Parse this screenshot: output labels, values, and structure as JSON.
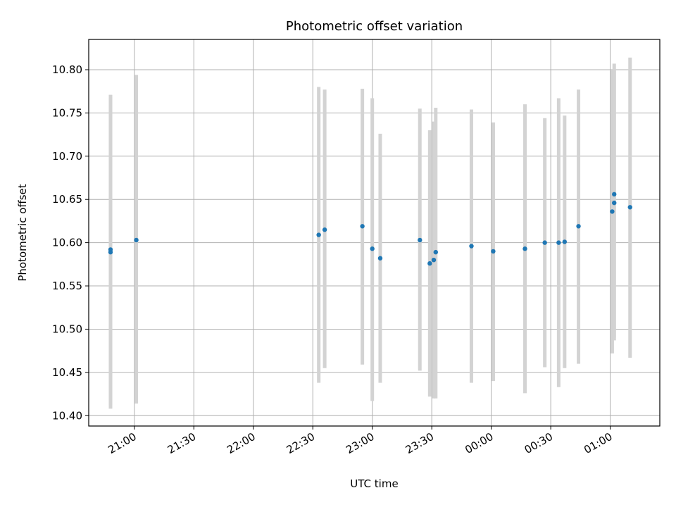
{
  "chart_data": {
    "type": "scatter",
    "title": "Photometric offset variation",
    "xlabel": "UTC time",
    "ylabel": "Photometric offset",
    "grid": true,
    "xlim": [
      "20:37",
      "01:25"
    ],
    "ylim": [
      10.388,
      10.835
    ],
    "x_ticks": [
      "21:00",
      "21:30",
      "22:00",
      "22:30",
      "23:00",
      "23:30",
      "00:00",
      "00:30",
      "01:00"
    ],
    "y_ticks": [
      "10.40",
      "10.45",
      "10.50",
      "10.55",
      "10.60",
      "10.65",
      "10.70",
      "10.75",
      "10.80"
    ],
    "point_color": "#1f77b4",
    "errorbar_color": "#d3d3d3",
    "points": [
      {
        "time": "20:48",
        "y": 10.589,
        "ylow": 10.408,
        "yhigh": 10.771
      },
      {
        "time": "20:48",
        "y": 10.592,
        "ylow": 10.412,
        "yhigh": 10.768
      },
      {
        "time": "21:01",
        "y": 10.603,
        "ylow": 10.414,
        "yhigh": 10.794
      },
      {
        "time": "22:33",
        "y": 10.609,
        "ylow": 10.438,
        "yhigh": 10.78
      },
      {
        "time": "22:36",
        "y": 10.615,
        "ylow": 10.455,
        "yhigh": 10.777
      },
      {
        "time": "22:55",
        "y": 10.619,
        "ylow": 10.459,
        "yhigh": 10.778
      },
      {
        "time": "23:00",
        "y": 10.593,
        "ylow": 10.417,
        "yhigh": 10.767
      },
      {
        "time": "23:04",
        "y": 10.582,
        "ylow": 10.438,
        "yhigh": 10.726
      },
      {
        "time": "23:24",
        "y": 10.603,
        "ylow": 10.452,
        "yhigh": 10.755
      },
      {
        "time": "23:29",
        "y": 10.576,
        "ylow": 10.422,
        "yhigh": 10.73
      },
      {
        "time": "23:31",
        "y": 10.58,
        "ylow": 10.42,
        "yhigh": 10.74
      },
      {
        "time": "23:32",
        "y": 10.589,
        "ylow": 10.42,
        "yhigh": 10.756
      },
      {
        "time": "23:50",
        "y": 10.596,
        "ylow": 10.438,
        "yhigh": 10.754
      },
      {
        "time": "00:01",
        "y": 10.59,
        "ylow": 10.44,
        "yhigh": 10.739
      },
      {
        "time": "00:17",
        "y": 10.593,
        "ylow": 10.426,
        "yhigh": 10.76
      },
      {
        "time": "00:27",
        "y": 10.6,
        "ylow": 10.456,
        "yhigh": 10.744
      },
      {
        "time": "00:34",
        "y": 10.6,
        "ylow": 10.433,
        "yhigh": 10.767
      },
      {
        "time": "00:37",
        "y": 10.601,
        "ylow": 10.455,
        "yhigh": 10.747
      },
      {
        "time": "00:44",
        "y": 10.619,
        "ylow": 10.46,
        "yhigh": 10.777
      },
      {
        "time": "01:01",
        "y": 10.636,
        "ylow": 10.472,
        "yhigh": 10.8
      },
      {
        "time": "01:02",
        "y": 10.656,
        "ylow": 10.487,
        "yhigh": 10.807
      },
      {
        "time": "01:02",
        "y": 10.646,
        "ylow": 10.49,
        "yhigh": 10.801
      },
      {
        "time": "01:10",
        "y": 10.641,
        "ylow": 10.467,
        "yhigh": 10.814
      }
    ]
  }
}
